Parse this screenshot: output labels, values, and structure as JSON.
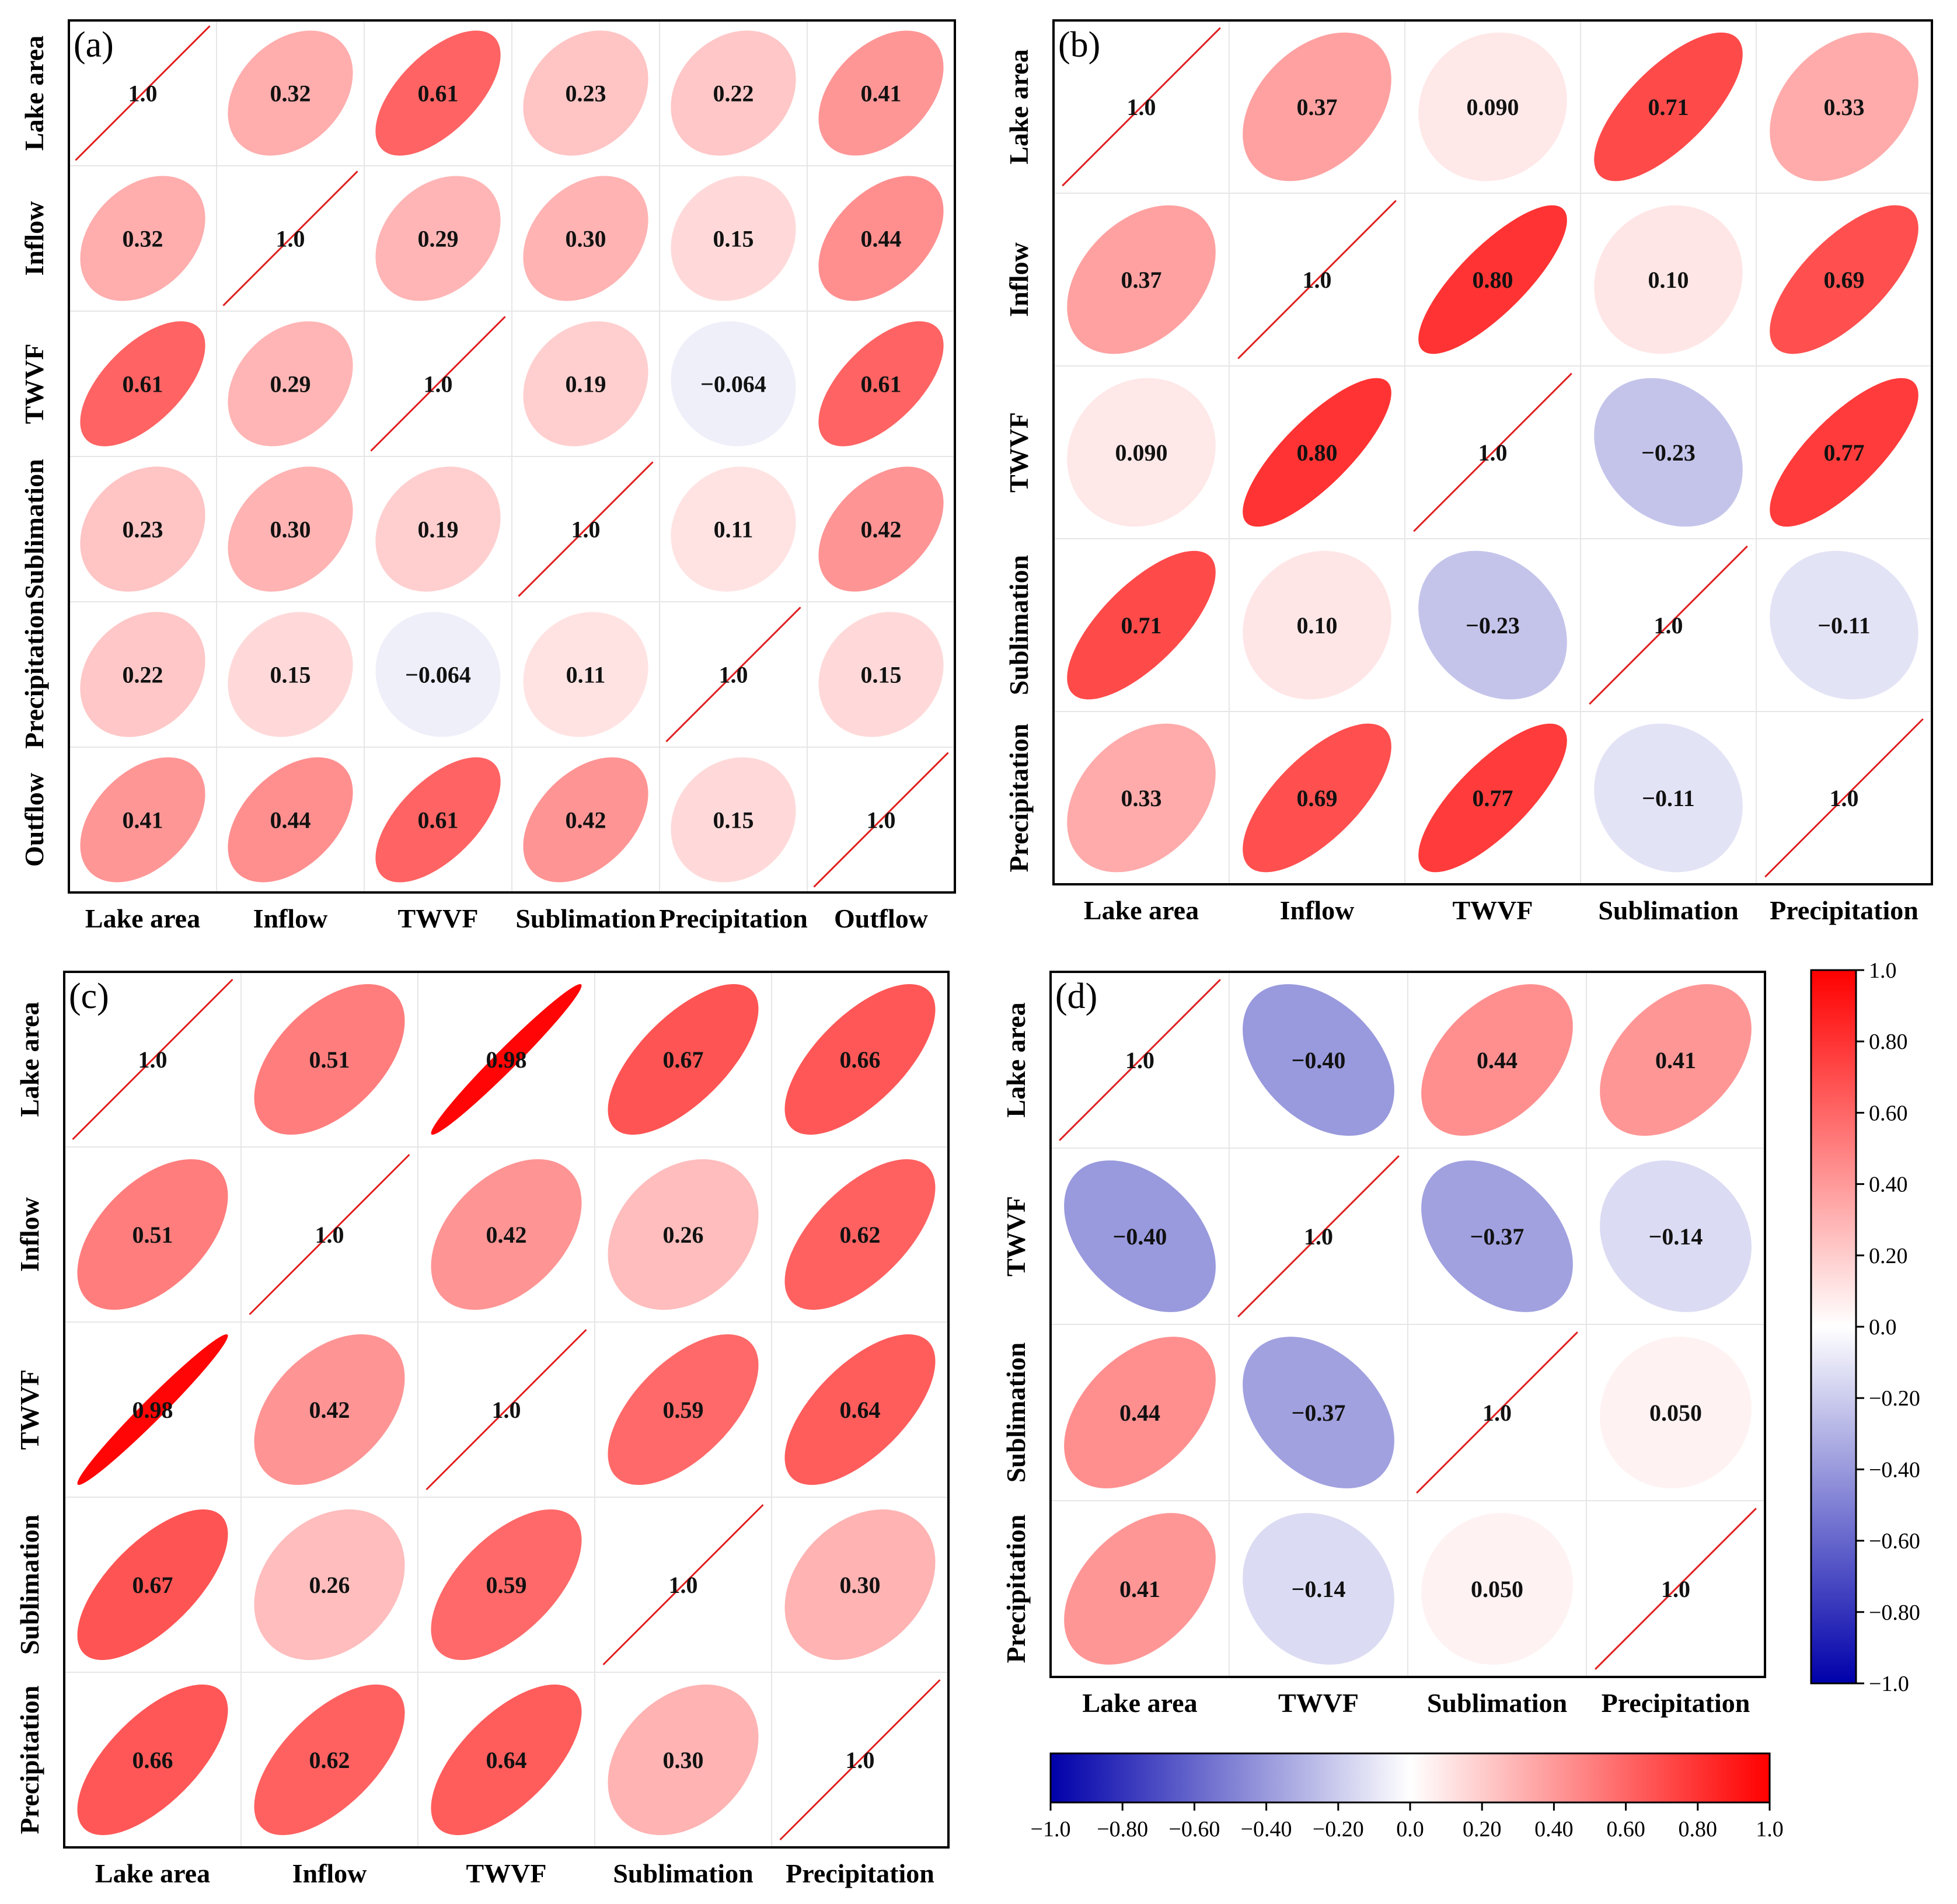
{
  "chart_data": [
    {
      "type": "correlation-matrix",
      "panel_label": "(a)",
      "variables": [
        "Lake area",
        "Inflow",
        "TWVF",
        "Sublimation",
        "Precipitation",
        "Outflow"
      ],
      "matrix": [
        [
          1.0,
          0.32,
          0.61,
          0.23,
          0.22,
          0.41
        ],
        [
          0.32,
          1.0,
          0.29,
          0.3,
          0.15,
          0.44
        ],
        [
          0.61,
          0.29,
          1.0,
          0.19,
          -0.064,
          0.61
        ],
        [
          0.23,
          0.3,
          0.19,
          1.0,
          0.11,
          0.42
        ],
        [
          0.22,
          0.15,
          -0.064,
          0.11,
          1.0,
          0.15
        ],
        [
          0.41,
          0.44,
          0.61,
          0.42,
          0.15,
          1.0
        ]
      ],
      "labels": [
        [
          "1.0",
          "0.32",
          "0.61",
          "0.23",
          "0.22",
          "0.41"
        ],
        [
          "0.32",
          "1.0",
          "0.29",
          "0.30",
          "0.15",
          "0.44"
        ],
        [
          "0.61",
          "0.29",
          "1.0",
          "0.19",
          "−0.064",
          "0.61"
        ],
        [
          "0.23",
          "0.30",
          "0.19",
          "1.0",
          "0.11",
          "0.42"
        ],
        [
          "0.22",
          "0.15",
          "−0.064",
          "0.11",
          "1.0",
          "0.15"
        ],
        [
          "0.41",
          "0.44",
          "0.61",
          "0.42",
          "0.15",
          "1.0"
        ]
      ]
    },
    {
      "type": "correlation-matrix",
      "panel_label": "(b)",
      "variables": [
        "Lake area",
        "Inflow",
        "TWVF",
        "Sublimation",
        "Precipitation"
      ],
      "matrix": [
        [
          1.0,
          0.37,
          0.09,
          0.71,
          0.33
        ],
        [
          0.37,
          1.0,
          0.8,
          0.1,
          0.69
        ],
        [
          0.09,
          0.8,
          1.0,
          -0.23,
          0.77
        ],
        [
          0.71,
          0.1,
          -0.23,
          1.0,
          -0.11
        ],
        [
          0.33,
          0.69,
          0.77,
          -0.11,
          1.0
        ]
      ],
      "labels": [
        [
          "1.0",
          "0.37",
          "0.090",
          "0.71",
          "0.33"
        ],
        [
          "0.37",
          "1.0",
          "0.80",
          "0.10",
          "0.69"
        ],
        [
          "0.090",
          "0.80",
          "1.0",
          "−0.23",
          "0.77"
        ],
        [
          "0.71",
          "0.10",
          "−0.23",
          "1.0",
          "−0.11"
        ],
        [
          "0.33",
          "0.69",
          "0.77",
          "−0.11",
          "1.0"
        ]
      ]
    },
    {
      "type": "correlation-matrix",
      "panel_label": "(c)",
      "variables": [
        "Lake area",
        "Inflow",
        "TWVF",
        "Sublimation",
        "Precipitation"
      ],
      "matrix": [
        [
          1.0,
          0.51,
          0.98,
          0.67,
          0.66
        ],
        [
          0.51,
          1.0,
          0.42,
          0.26,
          0.62
        ],
        [
          0.98,
          0.42,
          1.0,
          0.59,
          0.64
        ],
        [
          0.67,
          0.26,
          0.59,
          1.0,
          0.3
        ],
        [
          0.66,
          0.62,
          0.64,
          0.3,
          1.0
        ]
      ],
      "labels": [
        [
          "1.0",
          "0.51",
          "0.98",
          "0.67",
          "0.66"
        ],
        [
          "0.51",
          "1.0",
          "0.42",
          "0.26",
          "0.62"
        ],
        [
          "0.98",
          "0.42",
          "1.0",
          "0.59",
          "0.64"
        ],
        [
          "0.67",
          "0.26",
          "0.59",
          "1.0",
          "0.30"
        ],
        [
          "0.66",
          "0.62",
          "0.64",
          "0.30",
          "1.0"
        ]
      ]
    },
    {
      "type": "correlation-matrix",
      "panel_label": "(d)",
      "variables": [
        "Lake area",
        "TWVF",
        "Sublimation",
        "Precipitation"
      ],
      "matrix": [
        [
          1.0,
          -0.4,
          0.44,
          0.41
        ],
        [
          -0.4,
          1.0,
          -0.37,
          -0.14
        ],
        [
          0.44,
          -0.37,
          1.0,
          0.05
        ],
        [
          0.41,
          -0.14,
          0.05,
          1.0
        ]
      ],
      "labels": [
        [
          "1.0",
          "−0.40",
          "0.44",
          "0.41"
        ],
        [
          "−0.40",
          "1.0",
          "−0.37",
          "−0.14"
        ],
        [
          "0.44",
          "−0.37",
          "1.0",
          "0.050"
        ],
        [
          "0.41",
          "−0.14",
          "0.050",
          "1.0"
        ]
      ]
    }
  ],
  "colorbar": {
    "range": [
      -1.0,
      1.0
    ],
    "colors": {
      "negative": "#0000aa",
      "zero": "#ffffff",
      "positive": "#ff0000",
      "diagonal_line": "#e02020",
      "grid": "#e6e6e6"
    },
    "vertical_ticks": [
      "1.0",
      "0.80",
      "0.60",
      "0.40",
      "0.20",
      "0.0",
      "−0.20",
      "−0.40",
      "−0.60",
      "−0.80",
      "−1.0"
    ],
    "horizontal_ticks": [
      "−1.0",
      "−0.80",
      "−0.60",
      "−0.40",
      "−0.20",
      "0.0",
      "0.20",
      "0.40",
      "0.60",
      "0.80",
      "1.0"
    ]
  }
}
